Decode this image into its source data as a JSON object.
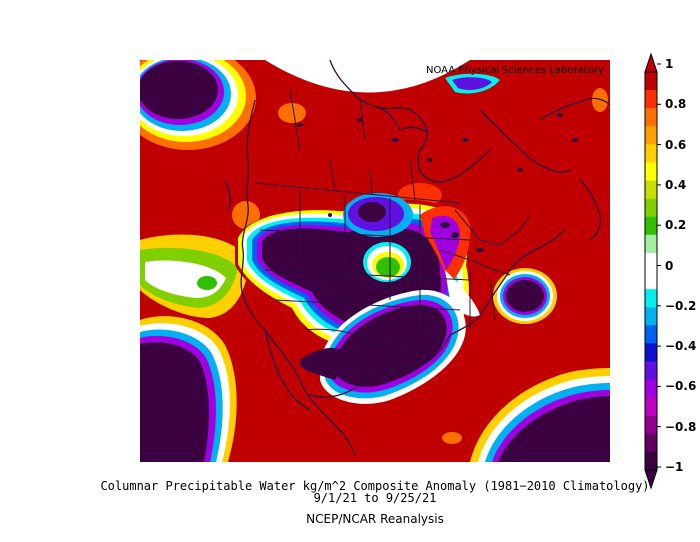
{
  "credit": "NOAA Physical Sciences Laboratory",
  "caption": {
    "line1": "Columnar Precipitable Water kg/m^2 Composite Anomaly (1981−2010 Climatology)",
    "line2": "9/1/21  to 9/25/21",
    "line3": "NCEP/NCAR Reanalysis"
  },
  "colorbar": {
    "labels": [
      "1",
      "0.8",
      "0.6",
      "0.4",
      "0.2",
      "0",
      "−0.2",
      "−0.4",
      "−0.6",
      "−0.8",
      "−1"
    ],
    "colors_top_to_bottom": [
      "#c00000",
      "#ff3000",
      "#ff7000",
      "#ffa000",
      "#ffd000",
      "#ffff00",
      "#c8e000",
      "#80d000",
      "#30c000",
      "#a0f0a0",
      "#ffffff",
      "#ffffff",
      "#00f0f0",
      "#00b0f0",
      "#0060f0",
      "#1010d0",
      "#6010e0",
      "#a000e0",
      "#c000c0",
      "#900090",
      "#600060",
      "#3a0040"
    ]
  }
}
